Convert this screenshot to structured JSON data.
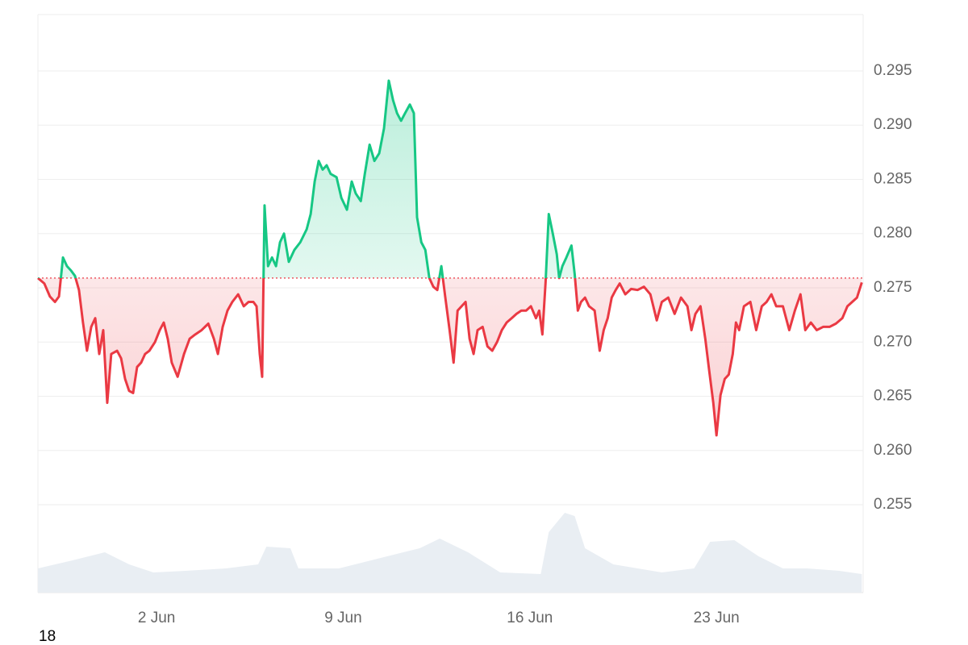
{
  "chart_data": {
    "type": "line",
    "xlim": [
      -2.45,
      28.5
    ],
    "xticks": [
      {
        "value": 2,
        "label": "2 Jun"
      },
      {
        "value": 9,
        "label": "9 Jun"
      },
      {
        "value": 16,
        "label": "16 Jun"
      },
      {
        "value": 23,
        "label": "23 Jun"
      }
    ],
    "ylim": [
      0.2469,
      0.3002
    ],
    "yticks": [
      0.255,
      {
        "value": 0.26,
        "label": "0.260"
      },
      0.265,
      {
        "value": 0.27,
        "label": "0.270"
      },
      0.275,
      {
        "value": 0.28,
        "label": "0.280"
      },
      0.285,
      {
        "value": 0.29,
        "label": "0.290"
      },
      0.295
    ],
    "y2lim": [
      0,
      100
    ],
    "grid": true,
    "baseline": 0.2759,
    "colors": {
      "above": "#16c784",
      "below": "#ea3943"
    },
    "series": [
      {
        "x": [
          -2.45,
          -2.21,
          -2.0,
          -1.81,
          -1.66,
          -1.51,
          -1.36,
          -1.21,
          -1.06,
          -0.91,
          -0.76,
          -0.61,
          -0.45,
          -0.3,
          -0.15,
          0.0,
          0.15,
          0.3,
          0.52,
          0.67,
          0.82,
          0.97,
          1.12,
          1.27,
          1.42,
          1.57,
          1.73,
          1.94,
          2.12,
          2.27,
          2.42,
          2.57,
          2.79,
          3.03,
          3.24,
          3.45,
          3.69,
          3.94,
          4.15,
          4.3,
          4.48,
          4.66,
          4.84,
          5.06,
          5.27,
          5.45,
          5.63,
          5.75,
          5.87,
          5.96,
          6.05,
          6.18,
          6.33,
          6.48,
          6.63,
          6.78,
          6.96,
          7.17,
          7.39,
          7.63,
          7.78,
          7.93,
          8.08,
          8.23,
          8.38,
          8.53,
          8.75,
          8.93,
          9.14,
          9.32,
          9.47,
          9.66,
          9.81,
          9.99,
          10.17,
          10.35,
          10.53,
          10.71,
          10.87,
          11.02,
          11.17,
          11.32,
          11.5,
          11.65,
          11.77,
          11.93,
          12.08,
          12.23,
          12.38,
          12.53,
          12.68,
          12.83,
          12.99,
          13.14,
          13.29,
          13.44,
          13.59,
          13.74,
          13.89,
          14.04,
          14.23,
          14.41,
          14.59,
          14.77,
          14.95,
          15.13,
          15.32,
          15.5,
          15.68,
          15.86,
          16.04,
          16.23,
          16.35,
          16.47,
          16.59,
          16.71,
          16.86,
          17.01,
          17.1,
          17.22,
          17.37,
          17.56,
          17.68,
          17.8,
          17.92,
          18.07,
          18.22,
          18.43,
          18.62,
          18.77,
          18.92,
          19.07,
          19.22,
          19.37,
          19.58,
          19.8,
          20.04,
          20.28,
          20.52,
          20.76,
          20.95,
          21.19,
          21.43,
          21.67,
          21.91,
          22.06,
          22.21,
          22.4,
          22.58,
          22.73,
          22.88,
          23.0,
          23.15,
          23.31,
          23.46,
          23.61,
          23.73,
          23.85,
          24.03,
          24.27,
          24.49,
          24.7,
          24.88,
          25.06,
          25.24,
          25.49,
          25.73,
          25.94,
          26.15,
          26.33,
          26.54,
          26.76,
          27.0,
          27.24,
          27.48,
          27.72,
          27.91,
          28.09,
          28.27,
          28.45
        ],
        "values": [
          0.2759,
          0.2754,
          0.2742,
          0.2737,
          0.2742,
          0.2778,
          0.277,
          0.2766,
          0.2761,
          0.2748,
          0.2718,
          0.2692,
          0.2714,
          0.2722,
          0.2689,
          0.2711,
          0.2644,
          0.2689,
          0.2692,
          0.2685,
          0.2666,
          0.2655,
          0.2653,
          0.2677,
          0.2681,
          0.2689,
          0.2692,
          0.27,
          0.2711,
          0.2718,
          0.2703,
          0.2681,
          0.2668,
          0.2689,
          0.2703,
          0.2707,
          0.2711,
          0.2717,
          0.2703,
          0.2689,
          0.2714,
          0.2729,
          0.2737,
          0.2744,
          0.2733,
          0.2737,
          0.2737,
          0.2733,
          0.2689,
          0.2668,
          0.2826,
          0.277,
          0.2778,
          0.277,
          0.2792,
          0.28,
          0.2774,
          0.2785,
          0.2792,
          0.2804,
          0.2818,
          0.2848,
          0.2867,
          0.2859,
          0.2863,
          0.2855,
          0.2852,
          0.2833,
          0.2822,
          0.2848,
          0.2837,
          0.283,
          0.2855,
          0.2882,
          0.2867,
          0.2874,
          0.2897,
          0.2941,
          0.2923,
          0.2911,
          0.2904,
          0.2911,
          0.2919,
          0.2911,
          0.2815,
          0.2792,
          0.2785,
          0.2759,
          0.2751,
          0.2748,
          0.277,
          0.2741,
          0.2711,
          0.2681,
          0.2729,
          0.2733,
          0.2737,
          0.2703,
          0.2689,
          0.2711,
          0.2714,
          0.2696,
          0.2692,
          0.27,
          0.2711,
          0.2718,
          0.2722,
          0.2726,
          0.2729,
          0.2729,
          0.2733,
          0.2722,
          0.2729,
          0.2707,
          0.2755,
          0.2818,
          0.28,
          0.2781,
          0.2759,
          0.277,
          0.2778,
          0.2789,
          0.2763,
          0.2729,
          0.2737,
          0.2741,
          0.2733,
          0.2729,
          0.2692,
          0.2711,
          0.2722,
          0.2741,
          0.2748,
          0.2754,
          0.2744,
          0.2749,
          0.2748,
          0.2751,
          0.2744,
          0.272,
          0.2737,
          0.2741,
          0.2726,
          0.2741,
          0.2733,
          0.2711,
          0.2726,
          0.2733,
          0.2703,
          0.2673,
          0.2644,
          0.2614,
          0.2651,
          0.2666,
          0.267,
          0.2689,
          0.2718,
          0.2711,
          0.2733,
          0.2737,
          0.2711,
          0.2733,
          0.2737,
          0.2744,
          0.2733,
          0.2733,
          0.2711,
          0.2729,
          0.2744,
          0.2711,
          0.2718,
          0.2711,
          0.2714,
          0.2714,
          0.2717,
          0.2722,
          0.2733,
          0.2737,
          0.2741,
          0.2755
        ]
      },
      {
        "axis": "y2",
        "color": "#e9eef3",
        "x": [
          -2.45,
          -1.15,
          0.06,
          0.97,
          1.88,
          3.09,
          4.6,
          5.81,
          6.12,
          7.02,
          7.32,
          8.84,
          10.65,
          11.87,
          12.62,
          13.68,
          14.89,
          16.41,
          16.71,
          17.31,
          17.68,
          18.07,
          19.13,
          20.95,
          22.16,
          22.76,
          23.67,
          24.58,
          25.49,
          26.39,
          27.6,
          28.45
        ],
        "values": [
          30,
          40,
          50,
          35,
          25,
          27,
          30,
          35,
          57,
          55,
          30,
          30,
          45,
          55,
          67,
          50,
          25,
          23,
          75,
          99,
          95,
          55,
          35,
          25,
          30,
          63,
          65,
          45,
          30,
          30,
          27,
          23
        ]
      }
    ]
  },
  "footer": "18"
}
